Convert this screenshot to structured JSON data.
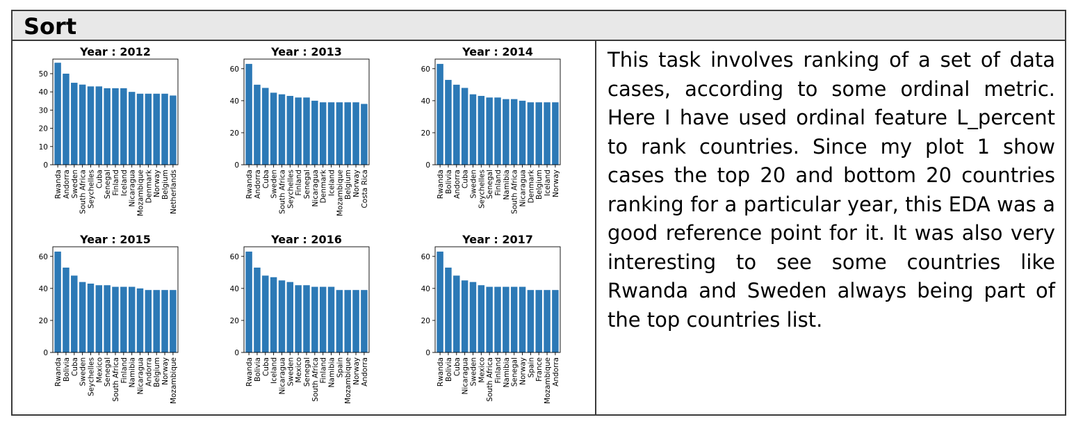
{
  "section": {
    "title": "Sort"
  },
  "description": "This task involves ranking of a set of data cases, according to some ordinal metric. Here I have used ordinal feature L_percent to rank countries. Since my plot 1 show cases the top 20 and bottom 20 countries ranking for a particular year, this EDA was a good reference point for it. It was also very interesting to see some countries like Rwanda and Sweden always being part of the top countries list.",
  "colors": {
    "bar": "#2c79b6",
    "axis": "#000000"
  },
  "chart_data": [
    {
      "type": "bar",
      "title": "Year : 2012",
      "categories": [
        "Rwanda",
        "Andorra",
        "Sweden",
        "South Africa",
        "Seychelles",
        "Cuba",
        "Senegal",
        "Finland",
        "Iceland",
        "Nicaragua",
        "Mozambique",
        "Denmark",
        "Norway",
        "Belgium",
        "Netherlands"
      ],
      "values": [
        56,
        50,
        45,
        44,
        43,
        43,
        42,
        42,
        42,
        40,
        39,
        39,
        39,
        39,
        38
      ],
      "ylim": [
        0,
        58
      ],
      "yticks": [
        0,
        10,
        20,
        30,
        40,
        50
      ]
    },
    {
      "type": "bar",
      "title": "Year : 2013",
      "categories": [
        "Rwanda",
        "Andorra",
        "Cuba",
        "Sweden",
        "South Africa",
        "Seychelles",
        "Finland",
        "Senegal",
        "Nicaragua",
        "Denmark",
        "Iceland",
        "Mozambique",
        "Belgium",
        "Norway",
        "Costa Rica"
      ],
      "values": [
        63,
        50,
        48,
        45,
        44,
        43,
        42,
        42,
        40,
        39,
        39,
        39,
        39,
        39,
        38
      ],
      "ylim": [
        0,
        66
      ],
      "yticks": [
        0,
        20,
        40,
        60
      ]
    },
    {
      "type": "bar",
      "title": "Year : 2014",
      "categories": [
        "Rwanda",
        "Bolivia",
        "Andorra",
        "Cuba",
        "Sweden",
        "Seychelles",
        "Senegal",
        "Finland",
        "Namibia",
        "South Africa",
        "Nicaragua",
        "Denmark",
        "Belgium",
        "Iceland",
        "Norway"
      ],
      "values": [
        63,
        53,
        50,
        48,
        44,
        43,
        42,
        42,
        41,
        41,
        40,
        39,
        39,
        39,
        39
      ],
      "ylim": [
        0,
        66
      ],
      "yticks": [
        0,
        20,
        40,
        60
      ]
    },
    {
      "type": "bar",
      "title": "Year : 2015",
      "categories": [
        "Rwanda",
        "Bolivia",
        "Cuba",
        "Sweden",
        "Seychelles",
        "Mexico",
        "Senegal",
        "South Africa",
        "Finland",
        "Namibia",
        "Nicaragua",
        "Andorra",
        "Belgium",
        "Norway",
        "Mozambique"
      ],
      "values": [
        63,
        53,
        48,
        44,
        43,
        42,
        42,
        41,
        41,
        41,
        40,
        39,
        39,
        39,
        39
      ],
      "ylim": [
        0,
        66
      ],
      "yticks": [
        0,
        20,
        40,
        60
      ]
    },
    {
      "type": "bar",
      "title": "Year : 2016",
      "categories": [
        "Rwanda",
        "Bolivia",
        "Cuba",
        "Iceland",
        "Nicaragua",
        "Sweden",
        "Mexico",
        "Senegal",
        "South Africa",
        "Finland",
        "Namibia",
        "Spain",
        "Mozambique",
        "Norway",
        "Andorra"
      ],
      "values": [
        63,
        53,
        48,
        47,
        45,
        44,
        42,
        42,
        41,
        41,
        41,
        39,
        39,
        39,
        39
      ],
      "ylim": [
        0,
        66
      ],
      "yticks": [
        0,
        20,
        40,
        60
      ]
    },
    {
      "type": "bar",
      "title": "Year : 2017",
      "categories": [
        "Rwanda",
        "Bolivia",
        "Cuba",
        "Nicaragua",
        "Sweden",
        "Mexico",
        "South Africa",
        "Finland",
        "Namibia",
        "Senegal",
        "Norway",
        "Spain",
        "France",
        "Mozambique",
        "Andorra"
      ],
      "values": [
        63,
        53,
        48,
        45,
        44,
        42,
        41,
        41,
        41,
        41,
        41,
        39,
        39,
        39,
        39
      ],
      "ylim": [
        0,
        66
      ],
      "yticks": [
        0,
        20,
        40,
        60
      ]
    }
  ]
}
